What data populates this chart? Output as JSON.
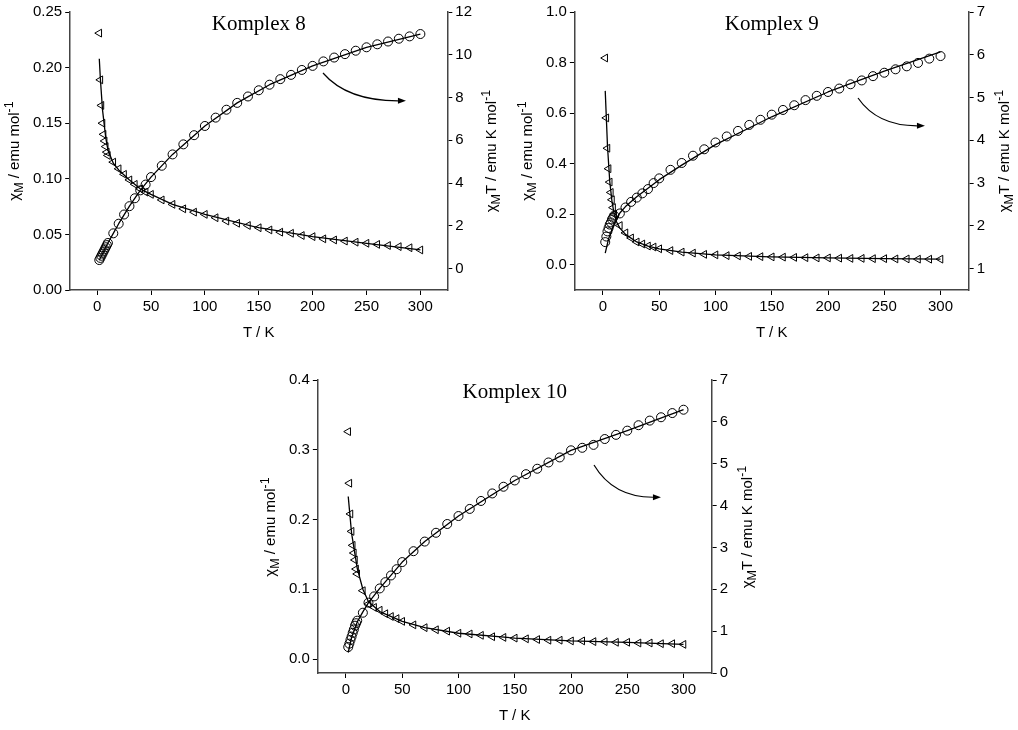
{
  "chart_data": [
    {
      "type": "scatter",
      "title": "Komplex 8",
      "xlabel": "T / K",
      "ylabel": "χ$_{M}$ / emu mol$^{-1}$",
      "y2label": "χ$_{M}$T / emu K mol$^{-1}$",
      "grid": false,
      "legend": false,
      "xlim": [
        -25,
        325
      ],
      "xticks": [
        0,
        50,
        100,
        150,
        200,
        250,
        300
      ],
      "ylim": [
        0,
        0.25
      ],
      "yticks": [
        {
          "value": 0,
          "label": "0.00"
        },
        {
          "value": 0.05,
          "label": "0.05"
        },
        {
          "value": 0.1,
          "label": "0.10"
        },
        {
          "value": 0.15,
          "label": "0.15"
        },
        {
          "value": 0.2,
          "label": "0.20"
        },
        {
          "value": 0.25,
          "label": "0.25"
        }
      ],
      "y2lim": [
        -1,
        12
      ],
      "y2ticks": [
        0,
        2,
        4,
        6,
        8,
        10,
        12
      ],
      "x": [
        2,
        3,
        4,
        5,
        6,
        7,
        8,
        9,
        10,
        15,
        20,
        25,
        30,
        35,
        40,
        45,
        50,
        60,
        70,
        80,
        90,
        100,
        110,
        120,
        130,
        140,
        150,
        160,
        170,
        180,
        190,
        200,
        210,
        220,
        230,
        240,
        250,
        260,
        270,
        280,
        290,
        300
      ],
      "series": [
        {
          "type": "scatter",
          "marker": "triangle",
          "color": "#000000",
          "values": [
            0.231,
            0.189,
            0.166,
            0.15,
            0.14,
            0.134,
            0.129,
            0.124,
            0.121,
            0.115,
            0.109,
            0.104,
            0.099,
            0.095,
            0.091,
            0.088,
            0.086,
            0.081,
            0.077,
            0.073,
            0.07,
            0.068,
            0.065,
            0.062,
            0.06,
            0.058,
            0.056,
            0.054,
            0.052,
            0.051,
            0.049,
            0.048,
            0.046,
            0.045,
            0.044,
            0.043,
            0.042,
            0.041,
            0.04,
            0.039,
            0.038,
            0.036
          ]
        },
        {
          "type": "line",
          "marker": "none",
          "color": "#000000",
          "x": [
            2,
            3,
            5,
            8,
            10,
            15,
            20,
            30,
            40,
            50,
            70,
            100,
            150,
            200,
            250,
            300
          ],
          "values": [
            0.208,
            0.19,
            0.162,
            0.137,
            0.126,
            0.114,
            0.108,
            0.099,
            0.091,
            0.086,
            0.077,
            0.068,
            0.056,
            0.048,
            0.042,
            0.036
          ]
        },
        {
          "type": "scatter",
          "marker": "circle",
          "axis": "y2",
          "color": "#000000",
          "values": [
            0.4,
            0.5,
            0.6,
            0.7,
            0.8,
            0.9,
            1.0,
            1.1,
            1.2,
            1.65,
            2.1,
            2.53,
            2.92,
            3.29,
            3.66,
            3.93,
            4.28,
            4.81,
            5.34,
            5.81,
            6.24,
            6.67,
            7.06,
            7.43,
            7.75,
            8.05,
            8.34,
            8.6,
            8.86,
            9.06,
            9.29,
            9.48,
            9.69,
            9.87,
            10.03,
            10.19,
            10.35,
            10.49,
            10.62,
            10.75,
            10.86,
            10.97
          ]
        },
        {
          "type": "line",
          "marker": "none",
          "axis": "y2",
          "color": "#000000",
          "x": [
            2,
            5,
            10,
            15,
            20,
            30,
            40,
            50,
            70,
            100,
            130,
            160,
            200,
            250,
            300
          ],
          "values": [
            0.4,
            0.7,
            1.2,
            1.65,
            2.1,
            2.92,
            3.66,
            4.28,
            5.34,
            6.67,
            7.75,
            8.6,
            9.48,
            10.35,
            10.97
          ]
        }
      ]
    },
    {
      "type": "scatter",
      "title": "Komplex 9",
      "xlabel": "T / K",
      "ylabel": "χ$_{M}$ / emu mol$^{-1}$",
      "y2label": "χ$_{M}$T / emu K mol$^{-1}$",
      "grid": false,
      "legend": false,
      "xlim": [
        -25,
        325
      ],
      "xticks": [
        0,
        50,
        100,
        150,
        200,
        250,
        300
      ],
      "ylim": [
        -0.1,
        1.0
      ],
      "yticks": [
        {
          "value": 0,
          "label": "0.0"
        },
        {
          "value": 0.2,
          "label": "0.2"
        },
        {
          "value": 0.4,
          "label": "0.4"
        },
        {
          "value": 0.6,
          "label": "0.6"
        },
        {
          "value": 0.8,
          "label": "0.8"
        },
        {
          "value": 1,
          "label": "1.0"
        }
      ],
      "y2lim": [
        0.5,
        7
      ],
      "y2ticks": [
        1,
        2,
        3,
        4,
        5,
        6,
        7
      ],
      "x": [
        2,
        3,
        4,
        5,
        6,
        7,
        8,
        9,
        10,
        15,
        20,
        25,
        30,
        35,
        40,
        45,
        50,
        60,
        70,
        80,
        90,
        100,
        110,
        120,
        130,
        140,
        150,
        160,
        170,
        180,
        190,
        200,
        210,
        220,
        230,
        240,
        250,
        260,
        270,
        280,
        290,
        300
      ],
      "series": [
        {
          "type": "scatter",
          "marker": "triangle",
          "color": "#000000",
          "values": [
            0.818,
            0.581,
            0.461,
            0.38,
            0.327,
            0.286,
            0.257,
            0.226,
            0.2,
            0.155,
            0.126,
            0.106,
            0.09,
            0.082,
            0.074,
            0.07,
            0.063,
            0.056,
            0.05,
            0.046,
            0.041,
            0.039,
            0.036,
            0.035,
            0.033,
            0.032,
            0.031,
            0.03,
            0.029,
            0.028,
            0.027,
            0.027,
            0.026,
            0.025,
            0.025,
            0.024,
            0.024,
            0.023,
            0.023,
            0.022,
            0.022,
            0.022
          ]
        },
        {
          "type": "line",
          "marker": "none",
          "color": "#000000",
          "x": [
            2,
            4,
            6,
            8,
            10,
            12,
            15,
            20,
            30,
            40,
            50,
            70,
            100,
            150,
            200,
            250,
            300
          ],
          "values": [
            0.688,
            0.47,
            0.33,
            0.25,
            0.2,
            0.17,
            0.145,
            0.12,
            0.09,
            0.074,
            0.063,
            0.05,
            0.039,
            0.031,
            0.027,
            0.024,
            0.022
          ]
        },
        {
          "type": "scatter",
          "marker": "circle",
          "axis": "y2",
          "color": "#000000",
          "values": [
            1.62,
            1.75,
            1.87,
            1.95,
            2.03,
            2.08,
            2.15,
            2.19,
            2.24,
            2.29,
            2.43,
            2.56,
            2.66,
            2.76,
            2.86,
            3.0,
            3.11,
            3.31,
            3.47,
            3.64,
            3.79,
            3.95,
            4.09,
            4.22,
            4.36,
            4.48,
            4.6,
            4.71,
            4.82,
            4.94,
            5.04,
            5.13,
            5.21,
            5.31,
            5.4,
            5.5,
            5.58,
            5.66,
            5.73,
            5.81,
            5.91,
            5.97
          ]
        },
        {
          "type": "line",
          "marker": "none",
          "axis": "y2",
          "color": "#000000",
          "x": [
            2,
            5,
            10,
            15,
            20,
            30,
            50,
            70,
            100,
            150,
            200,
            250,
            300
          ],
          "values": [
            1.36,
            1.7,
            2.05,
            2.3,
            2.45,
            2.68,
            3.08,
            3.42,
            3.9,
            4.55,
            5.13,
            5.62,
            6.07
          ]
        }
      ]
    },
    {
      "type": "scatter",
      "title": "Komplex 10",
      "xlabel": "T / K",
      "ylabel": "χ$_{M}$ / emu mol$^{-1}$",
      "y2label": "χ$_{M}$T / emu K mol$^{-1}$",
      "grid": false,
      "legend": false,
      "xlim": [
        -25,
        325
      ],
      "xticks": [
        0,
        50,
        100,
        150,
        200,
        250,
        300
      ],
      "ylim": [
        -0.02,
        0.4
      ],
      "yticks": [
        {
          "value": 0,
          "label": "0.0"
        },
        {
          "value": 0.1,
          "label": "0.1"
        },
        {
          "value": 0.2,
          "label": "0.2"
        },
        {
          "value": 0.3,
          "label": "0.3"
        },
        {
          "value": 0.4,
          "label": "0.4"
        }
      ],
      "y2lim": [
        0,
        7
      ],
      "y2ticks": [
        0,
        1,
        2,
        3,
        4,
        5,
        6,
        7
      ],
      "x": [
        2,
        3,
        4,
        5,
        6,
        7,
        8,
        9,
        10,
        15,
        20,
        25,
        30,
        35,
        40,
        45,
        50,
        60,
        70,
        80,
        90,
        100,
        110,
        120,
        130,
        140,
        150,
        160,
        170,
        180,
        190,
        200,
        210,
        220,
        230,
        240,
        250,
        260,
        270,
        280,
        290,
        300
      ],
      "series": [
        {
          "type": "scatter",
          "marker": "triangle",
          "color": "#000000",
          "values": [
            0.326,
            0.252,
            0.208,
            0.183,
            0.163,
            0.152,
            0.142,
            0.129,
            0.122,
            0.098,
            0.079,
            0.074,
            0.07,
            0.065,
            0.061,
            0.058,
            0.054,
            0.049,
            0.045,
            0.042,
            0.04,
            0.037,
            0.036,
            0.034,
            0.032,
            0.031,
            0.03,
            0.029,
            0.028,
            0.027,
            0.027,
            0.026,
            0.026,
            0.025,
            0.025,
            0.024,
            0.024,
            0.023,
            0.023,
            0.022,
            0.022,
            0.021
          ]
        },
        {
          "type": "line",
          "marker": "none",
          "color": "#000000",
          "x": [
            2,
            5,
            10,
            15,
            20,
            30,
            50,
            70,
            100,
            150,
            200,
            250,
            300
          ],
          "values": [
            0.233,
            0.18,
            0.13,
            0.1,
            0.082,
            0.068,
            0.054,
            0.045,
            0.037,
            0.03,
            0.026,
            0.024,
            0.021
          ]
        },
        {
          "type": "scatter",
          "marker": "circle",
          "axis": "y2",
          "color": "#000000",
          "values": [
            0.62,
            0.7,
            0.79,
            0.87,
            0.96,
            1.04,
            1.13,
            1.19,
            1.25,
            1.44,
            1.68,
            1.83,
            2.02,
            2.17,
            2.33,
            2.48,
            2.65,
            2.91,
            3.14,
            3.35,
            3.56,
            3.75,
            3.92,
            4.11,
            4.29,
            4.45,
            4.6,
            4.75,
            4.88,
            5.03,
            5.15,
            5.32,
            5.38,
            5.45,
            5.59,
            5.69,
            5.79,
            5.92,
            6.03,
            6.11,
            6.21,
            6.29
          ]
        },
        {
          "type": "line",
          "marker": "none",
          "axis": "y2",
          "color": "#000000",
          "x": [
            2,
            5,
            10,
            15,
            20,
            30,
            50,
            70,
            100,
            150,
            200,
            250,
            300
          ],
          "values": [
            0.49,
            0.85,
            1.22,
            1.46,
            1.68,
            2.02,
            2.65,
            3.14,
            3.75,
            4.6,
            5.32,
            5.79,
            6.29
          ]
        }
      ]
    }
  ]
}
